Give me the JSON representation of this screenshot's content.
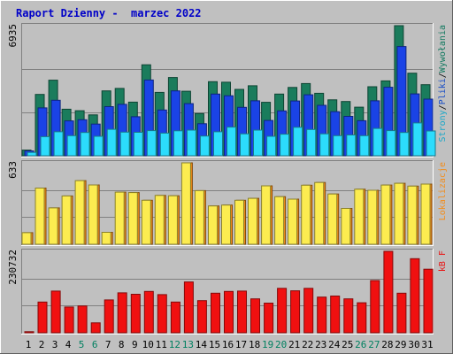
{
  "chart_data": {
    "type": "bar",
    "title": "Raport Dzienny -  marzec 2022",
    "categories": [
      "1",
      "2",
      "3",
      "4",
      "5",
      "6",
      "7",
      "8",
      "9",
      "10",
      "11",
      "12",
      "13",
      "14",
      "15",
      "16",
      "17",
      "18",
      "19",
      "20",
      "21",
      "22",
      "23",
      "24",
      "25",
      "26",
      "27",
      "28",
      "29",
      "30",
      "31"
    ],
    "weekend_days": [
      "5",
      "6",
      "12",
      "13",
      "19",
      "20",
      "26",
      "27"
    ],
    "panels": [
      {
        "id": "top",
        "y_tick_label": "6935",
        "ylim": [
          0,
          6935
        ],
        "legend": [
          {
            "text": "Wywołania",
            "color": "#11795f"
          },
          {
            "text": "Pliki",
            "color": "#1a4fc6"
          },
          {
            "text": "Strony",
            "color": "#1aa7c8"
          }
        ],
        "series": [
          {
            "name": "Wywołania",
            "color": "#1a7c5c",
            "values": [
              300,
              3270,
              4030,
              2480,
              2400,
              2180,
              3460,
              3590,
              2860,
              4850,
              3380,
              4170,
              3440,
              2250,
              3950,
              3920,
              3540,
              3730,
              2850,
              3290,
              3640,
              3850,
              3330,
              2980,
              2890,
              2590,
              3680,
              3990,
              6935,
              4400,
              3790
            ]
          },
          {
            "name": "Pliki",
            "color": "#1a43e6",
            "values": [
              260,
              2550,
              2960,
              1860,
              1920,
              1690,
              2620,
              2740,
              2080,
              4040,
              2440,
              3460,
              2780,
              1710,
              3290,
              3200,
              2580,
              2930,
              1880,
              2390,
              2920,
              3250,
              2690,
              2350,
              2100,
              1870,
              2930,
              3650,
              5820,
              3300,
              3020
            ]
          },
          {
            "name": "Strony",
            "color": "#2cdcfc",
            "values": [
              180,
              1020,
              1280,
              1070,
              1240,
              1040,
              1410,
              1260,
              1250,
              1340,
              1210,
              1330,
              1370,
              1050,
              1280,
              1530,
              1170,
              1370,
              1040,
              1150,
              1520,
              1400,
              1170,
              1070,
              1110,
              1070,
              1460,
              1340,
              1240,
              1750,
              1320
            ]
          }
        ]
      },
      {
        "id": "mid",
        "y_tick_label": "633",
        "ylim": [
          0,
          633
        ],
        "legend": [
          {
            "text": "Lokalizacje",
            "color": "#f28d1c"
          }
        ],
        "series": [
          {
            "name": "Lokalizacje",
            "color": "#f08a18",
            "values": [
              90,
              437,
              283,
              376,
              495,
              461,
              93,
              405,
              402,
              342,
              380,
              377,
              633,
              417,
              298,
              305,
              342,
              357,
              454,
              370,
              351,
              459,
              480,
              391,
              279,
              428,
              420,
              460,
              474,
              452,
              468
            ]
          },
          {
            "name": "",
            "color": "#fcec50",
            "values": [
              90,
              437,
              283,
              376,
              495,
              461,
              93,
              405,
              402,
              342,
              380,
              377,
              633,
              417,
              298,
              305,
              342,
              357,
              454,
              370,
              351,
              459,
              480,
              391,
              279,
              428,
              420,
              460,
              474,
              452,
              468
            ]
          }
        ]
      },
      {
        "id": "bottom",
        "y_tick_label": "230732",
        "ylim": [
          0,
          230732
        ],
        "legend": [
          {
            "text": "kB F",
            "color": "#e81414"
          }
        ],
        "series": [
          {
            "name": "kB F",
            "color": "#f01010",
            "values": [
              3000,
              87000,
              118000,
              73000,
              76000,
              28000,
              93000,
              113000,
              109000,
              117000,
              108000,
              87000,
              144000,
              91000,
              112000,
              117000,
              118000,
              96000,
              84000,
              126000,
              119000,
              126000,
              101000,
              104000,
              96000,
              85000,
              148000,
              230732,
              112000,
              210000,
              180000
            ]
          }
        ]
      }
    ],
    "grid": true
  }
}
